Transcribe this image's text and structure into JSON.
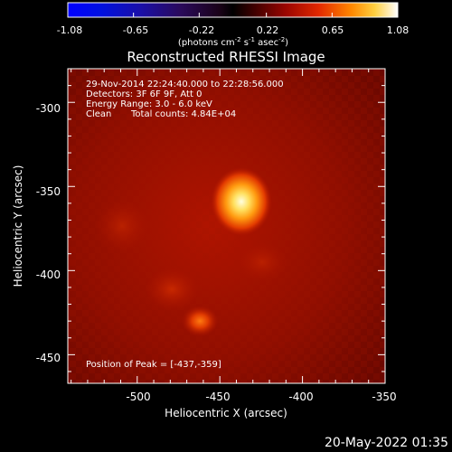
{
  "window": {
    "title": "Reconstructed RHESSI Image",
    "footer_date": "20-May-2022 01:35"
  },
  "colors": {
    "background": "#000000",
    "text": "#ffffff"
  },
  "colorbar": {
    "tick_labels": [
      "-1.08",
      "-0.65",
      "-0.22",
      "0.22",
      "0.65",
      "1.08"
    ],
    "units_prefix": "(photons cm",
    "units_exp1": "-2",
    "units_mid1": " s",
    "units_exp2": "-1",
    "units_mid2": " asec",
    "units_exp3": "-2",
    "units_suffix": ")"
  },
  "plot": {
    "annotations": {
      "time_range": "29-Nov-2014 22:24:40.000 to 22:28:56.000",
      "detectors": "Detectors: 3F 6F 9F, Att 0",
      "energy_range": "Energy Range: 3.0 - 6.0 keV",
      "clean_label": "Clean",
      "total_counts": "Total counts: 4.84E+04",
      "peak_position": "Position of Peak = [-437,-359]"
    },
    "x_axis_label": "Heliocentric X (arcsec)",
    "y_axis_label": "Heliocentric Y (arcsec)",
    "x_tick_labels": [
      "-500",
      "-450",
      "-400",
      "-350"
    ],
    "y_tick_labels": [
      "-300",
      "-350",
      "-400",
      "-450"
    ]
  },
  "chart_data": {
    "type": "heatmap",
    "title": "Reconstructed RHESSI Image",
    "xlabel": "Heliocentric X (arcsec)",
    "ylabel": "Heliocentric Y (arcsec)",
    "xlim": [
      -542,
      -350
    ],
    "ylim": [
      -467,
      -280
    ],
    "x_ticks": [
      -500,
      -450,
      -400,
      -350
    ],
    "y_ticks": [
      -300,
      -350,
      -400,
      -450
    ],
    "colorbar_range": [
      -1.08,
      1.08
    ],
    "colorbar_ticks": [
      -1.08,
      -0.65,
      -0.22,
      0.22,
      0.65,
      1.08
    ],
    "peak_position": [
      -437,
      -359
    ],
    "sources": [
      {
        "x": -437,
        "y": -359,
        "intensity": 1.0
      },
      {
        "x": -462,
        "y": -430,
        "intensity": 0.55
      }
    ]
  }
}
